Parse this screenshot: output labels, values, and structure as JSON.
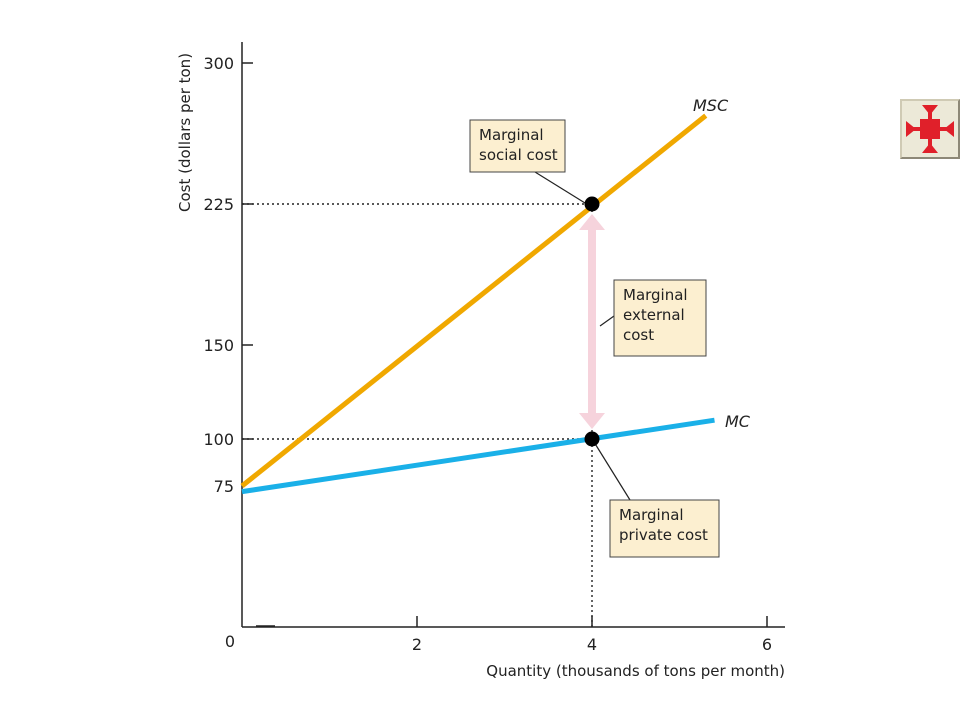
{
  "chart_data": {
    "type": "line",
    "title": "",
    "xlabel": "Quantity (thousands of tons per month)",
    "ylabel": "Cost (dollars per ton)",
    "xlim": [
      0,
      6.2
    ],
    "ylim": [
      0,
      300
    ],
    "x_ticks": [
      0,
      2,
      4,
      6
    ],
    "x_tick_labels": [
      "0",
      "2",
      "4",
      "6"
    ],
    "y_ticks": [
      75,
      100,
      150,
      225,
      300
    ],
    "y_tick_labels": [
      "75",
      "100",
      "150",
      "225",
      "300"
    ],
    "grid": false,
    "series": [
      {
        "name": "MSC",
        "color": "#f0a800",
        "x": [
          0,
          5.3
        ],
        "y": [
          75,
          272
        ]
      },
      {
        "name": "MC",
        "color": "#1ab0e8",
        "x": [
          0,
          5.4
        ],
        "y": [
          72,
          110
        ]
      }
    ],
    "points": [
      {
        "x": 4,
        "y": 225
      },
      {
        "x": 4,
        "y": 100
      }
    ],
    "reference_lines": [
      {
        "type": "dotted",
        "from": [
          0,
          225
        ],
        "to": [
          4,
          225
        ]
      },
      {
        "type": "dotted",
        "from": [
          0,
          100
        ],
        "to": [
          4,
          100
        ]
      },
      {
        "type": "dotted",
        "from": [
          4,
          0
        ],
        "to": [
          4,
          225
        ]
      }
    ],
    "external_cost_arrow": {
      "x": 4,
      "y_from": 100,
      "y_to": 225,
      "color": "#f6d3dc"
    },
    "annotations": [
      {
        "id": "msc",
        "lines": [
          "Marginal",
          "social cost"
        ]
      },
      {
        "id": "mec",
        "lines": [
          "Marginal",
          "external",
          "cost"
        ]
      },
      {
        "id": "mpc",
        "lines": [
          "Marginal",
          "private cost"
        ]
      }
    ],
    "callout_fill": "#fcefd0"
  },
  "nav_button": {
    "icon": "collapse-arrows-icon",
    "color": "#e0202a"
  }
}
